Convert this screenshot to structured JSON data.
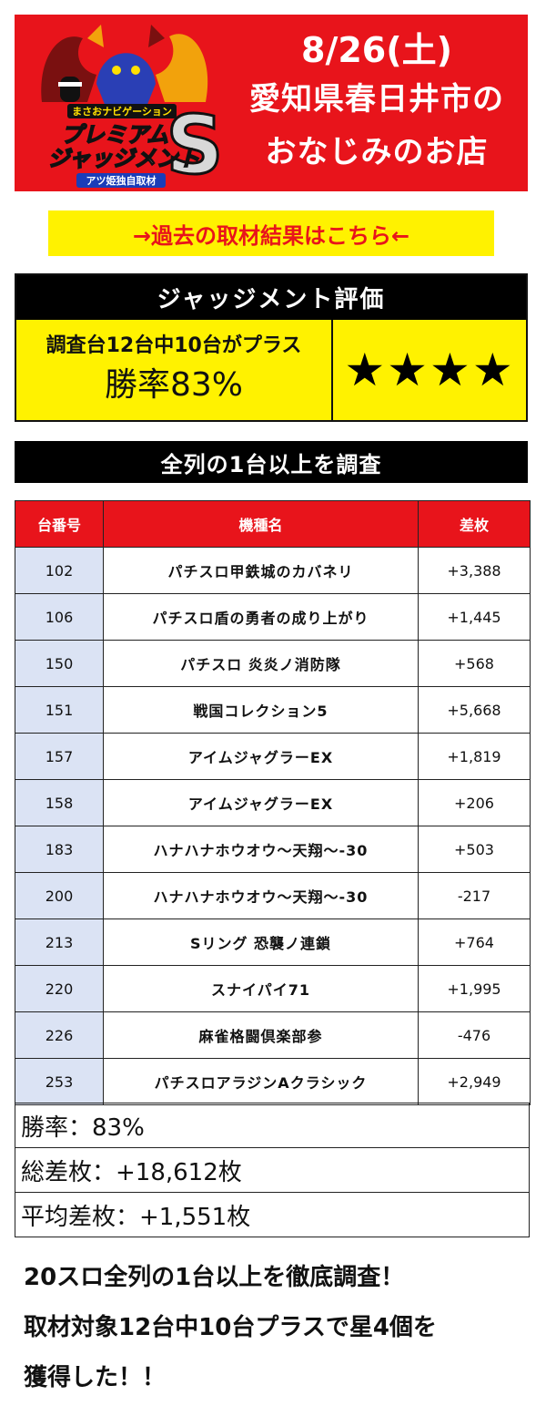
{
  "banner": {
    "logo": {
      "subtitle": "まさおナビゲーション",
      "title_top": "プレミアム",
      "title_bottom": "ジャッジメント",
      "ribbon": "アツ姫独自取材",
      "letter": "S"
    },
    "date": "8/26(土)",
    "line1": "愛知県春日井市の",
    "line2": "おなじみのお店"
  },
  "link_label": "→過去の取材結果はこちら←",
  "judgment": {
    "header": "ジャッジメント評価",
    "condition": "調査台12台中10台がプラス",
    "win_rate": "勝率83%",
    "stars": "★★★★"
  },
  "scope": "全列の1台以上を調査",
  "table": {
    "headers": [
      "台番号",
      "機種名",
      "差枚"
    ],
    "rows": [
      {
        "no": "102",
        "name": "パチスロ甲鉄城のカバネリ",
        "diff": "+3,388"
      },
      {
        "no": "106",
        "name": "パチスロ盾の勇者の成り上がり",
        "diff": "+1,445"
      },
      {
        "no": "150",
        "name": "パチスロ 炎炎ノ消防隊",
        "diff": "+568"
      },
      {
        "no": "151",
        "name": "戦国コレクション5",
        "diff": "+5,668"
      },
      {
        "no": "157",
        "name": "アイムジャグラーEX",
        "diff": "+1,819"
      },
      {
        "no": "158",
        "name": "アイムジャグラーEX",
        "diff": "+206"
      },
      {
        "no": "183",
        "name": "ハナハナホウオウ～天翔～‐30",
        "diff": "+503"
      },
      {
        "no": "200",
        "name": "ハナハナホウオウ～天翔～‐30",
        "diff": "-217"
      },
      {
        "no": "213",
        "name": "Sリング 恐襲ノ連鎖",
        "diff": "+764"
      },
      {
        "no": "220",
        "name": "スナイパイ71",
        "diff": "+1,995"
      },
      {
        "no": "226",
        "name": "麻雀格闘倶楽部参",
        "diff": "-476"
      },
      {
        "no": "253",
        "name": "パチスロアラジンAクラシック",
        "diff": "+2,949"
      }
    ]
  },
  "summary": {
    "win_rate": "勝率：83%",
    "total_diff": "総差枚：+18,612枚",
    "avg_diff": "平均差枚：+1,551枚"
  },
  "footer": {
    "line1": "20スロ全列の1台以上を徹底調査！",
    "line2": "取材対象12台中10台プラスで星4個を",
    "line3": "獲得した！！"
  },
  "colors": {
    "banner_red": "#e8141b",
    "link_yellow": "#fff200",
    "number_cell": "#dbe3f4"
  }
}
